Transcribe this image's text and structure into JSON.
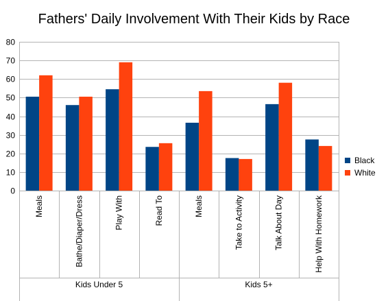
{
  "chart_data": {
    "type": "bar",
    "title": "Fathers' Daily Involvement With Their Kids by Race",
    "xlabel": "",
    "ylabel": "",
    "ylim": [
      0,
      80
    ],
    "yticks": [
      0,
      10,
      20,
      30,
      40,
      50,
      60,
      70,
      80
    ],
    "grid": true,
    "legend": "right",
    "categories": [
      "Meals",
      "Bathe/Diaper/Dress",
      "Play With",
      "Read To",
      "Meals",
      "Take to Activity",
      "Talk About Day",
      "Help With Homework"
    ],
    "groups": [
      {
        "label": "Kids Under 5",
        "span": 4
      },
      {
        "label": "Kids 5+",
        "span": 4
      }
    ],
    "series": [
      {
        "name": "Black",
        "color": "#004586",
        "values": [
          50.5,
          46,
          54.5,
          23.5,
          36.5,
          17.5,
          46.5,
          27.5
        ]
      },
      {
        "name": "White",
        "color": "#ff420e",
        "values": [
          62,
          50.5,
          69,
          25.5,
          53.5,
          17,
          58,
          24
        ]
      }
    ]
  }
}
